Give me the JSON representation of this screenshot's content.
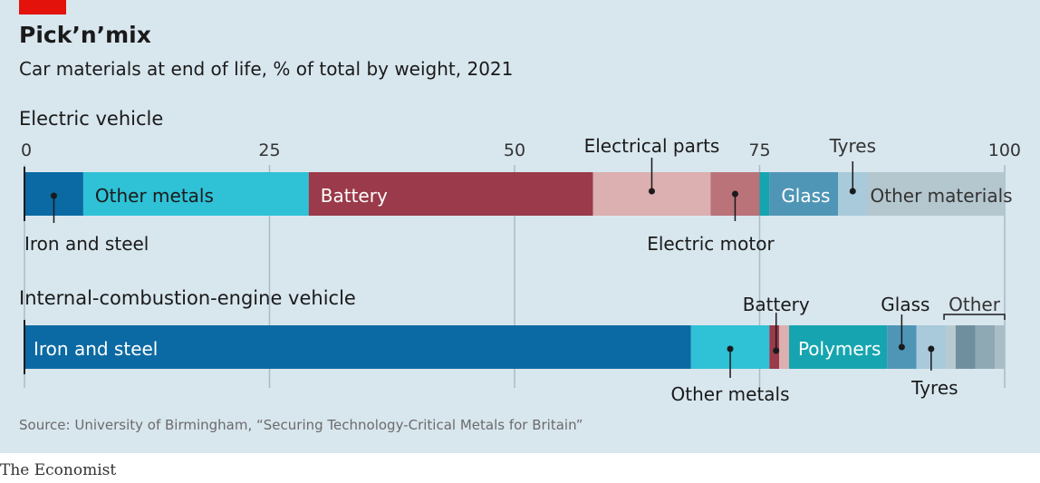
{
  "title": "Pick’n’mix",
  "subtitle": "Car materials at end of life, % of total by weight, 2021",
  "source": "Source: University of Birmingham, “Securing Technology-Critical Metals for Britain”",
  "brand": "The Economist",
  "colors": {
    "background": "#d8e6ee",
    "brand_red": "#e3120b",
    "iron_and_steel": "#0b6aa3",
    "other_metals": "#2fc1d6",
    "battery": "#9a3a4a",
    "electrical_parts": "#dcafb0",
    "electric_motor": "#b97379",
    "polymers": "#16a5b0",
    "glass": "#4f95b6",
    "tyres": "#a8cadb",
    "other": "#9fb4be"
  },
  "chart_data": {
    "type": "bar",
    "orientation": "horizontal-stacked",
    "xlim": [
      0,
      100
    ],
    "xticks": [
      0,
      25,
      50,
      75,
      100
    ],
    "grid": true,
    "series": [
      {
        "name": "Electric vehicle",
        "segments": [
          {
            "label": "Iron and steel",
            "value": 6,
            "color": "#0b6aa3"
          },
          {
            "label": "Other metals",
            "value": 23,
            "color": "#2fc1d6"
          },
          {
            "label": "Battery",
            "value": 29,
            "color": "#9a3a4a"
          },
          {
            "label": "Electrical parts",
            "value": 12,
            "color": "#dcafb0"
          },
          {
            "label": "Electric motor",
            "value": 5,
            "color": "#b97379"
          },
          {
            "label": "",
            "value": 1,
            "color": "#16a5b0"
          },
          {
            "label": "Glass",
            "value": 7,
            "color": "#4f95b6"
          },
          {
            "label": "Tyres",
            "value": 3,
            "color": "#a8cadb"
          },
          {
            "label": "Other materials",
            "value": 14,
            "color": "#b4c6ce"
          }
        ]
      },
      {
        "name": "Internal-combustion-engine vehicle",
        "segments": [
          {
            "label": "Iron and steel",
            "value": 68,
            "color": "#0b6aa3"
          },
          {
            "label": "Other metals",
            "value": 8,
            "color": "#2fc1d6"
          },
          {
            "label": "Battery",
            "value": 1,
            "color": "#9a3a4a"
          },
          {
            "label": "",
            "value": 1,
            "color": "#dcafb0"
          },
          {
            "label": "Polymers",
            "value": 10,
            "color": "#16a5b0"
          },
          {
            "label": "Glass",
            "value": 3,
            "color": "#4f95b6"
          },
          {
            "label": "Tyres",
            "value": 3,
            "color": "#a8cadb"
          },
          {
            "label": "",
            "value": 1,
            "color": "#b7c9d1"
          },
          {
            "label": "",
            "value": 2,
            "color": "#6f8f9e"
          },
          {
            "label": "",
            "value": 2,
            "color": "#8ea8b4"
          },
          {
            "label": "",
            "value": 1,
            "color": "#a9bdc7"
          }
        ]
      }
    ],
    "annotations": {
      "other_bracket": "Other"
    }
  }
}
